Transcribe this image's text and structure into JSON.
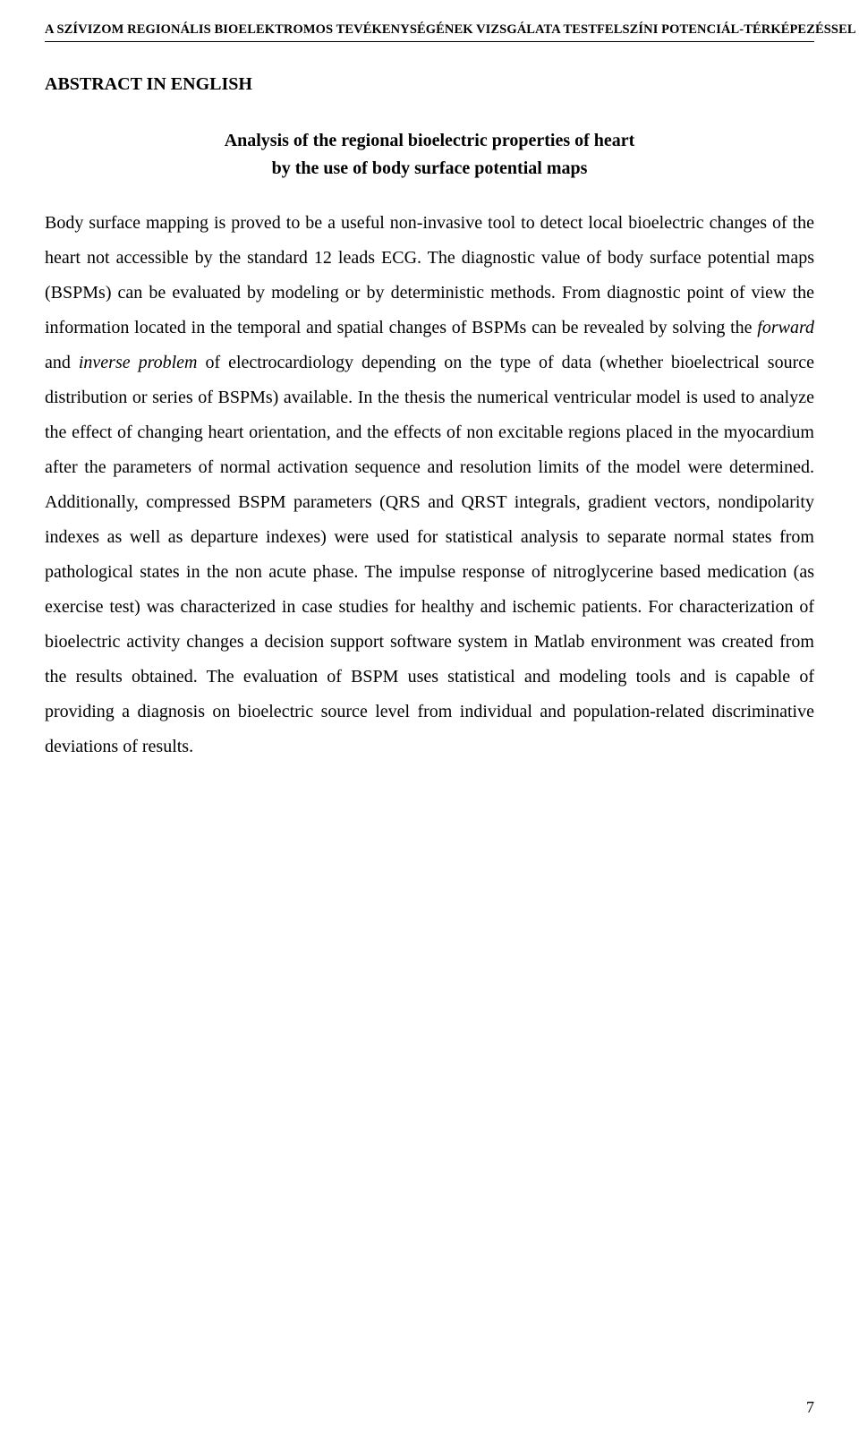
{
  "header": {
    "running_title": "A SZÍVIZOM REGIONÁLIS BIOELEKTROMOS TEVÉKENYSÉGÉNEK VIZSGÁLATA TESTFELSZÍNI POTENCIÁL-TÉRKÉPEZÉSSEL"
  },
  "section_title": "ABSTRACT IN ENGLISH",
  "title": {
    "line1": "Analysis of the regional bioelectric properties of heart",
    "line2": "by the use of body surface potential maps"
  },
  "body": {
    "p1a": "Body surface mapping is proved to be a useful non-invasive tool to detect local bioelectric changes of the heart not accessible by the standard 12 leads ECG. The diagnostic value of body surface potential maps (BSPMs) can be evaluated by modeling or by deterministic methods. From diagnostic point of view the information located in the temporal and spatial changes of BSPMs can be revealed by solving the ",
    "p1_forward": "forward",
    "p1b": " and ",
    "p1_inverse": "inverse problem",
    "p1c": " of electrocardiology depending on the type of data (whether bioelectrical source distribution or series of BSPMs) available. In the thesis the numerical ventricular model is used to analyze the effect of changing heart orientation, and the effects of non excitable regions placed in the myocardium after the parameters of normal activation sequence and resolution limits of the model were determined. Additionally, compressed BSPM parameters (QRS and QRST integrals, gradient vectors, nondipolarity indexes as well as departure indexes) were used for statistical analysis to separate normal states from pathological states in the non acute phase. The impulse response of nitroglycerine based medication (as exercise test) was characterized in case studies for healthy and ischemic patients. For characterization of bioelectric activity changes a decision support software system in Matlab environment was created from the results obtained. The evaluation of BSPM uses statistical and modeling tools and is capable of providing a diagnosis on bioelectric source level from individual and population-related discriminative deviations of results."
  },
  "page_number": "7"
}
